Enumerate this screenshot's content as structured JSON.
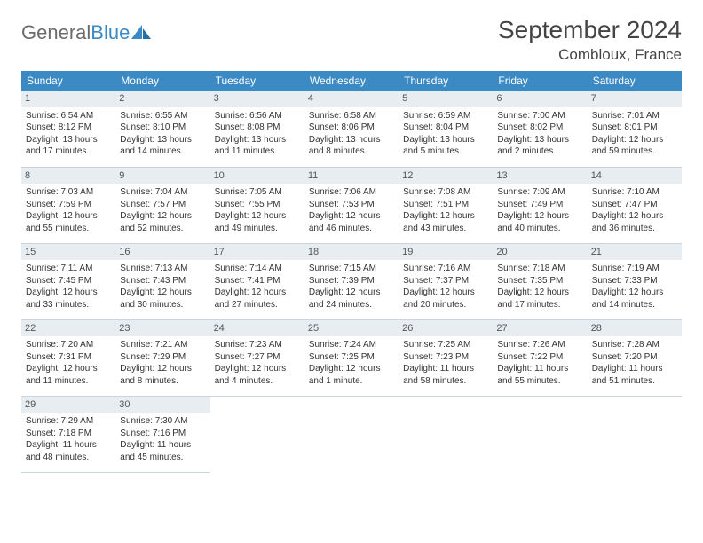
{
  "brand": {
    "word1": "General",
    "word2": "Blue"
  },
  "title": "September 2024",
  "location": "Combloux, France",
  "colors": {
    "header_bg": "#3b8ac4",
    "daynum_bg": "#e8edf2",
    "rule": "#c9d4df"
  },
  "day_headers": [
    "Sunday",
    "Monday",
    "Tuesday",
    "Wednesday",
    "Thursday",
    "Friday",
    "Saturday"
  ],
  "weeks": [
    [
      {
        "n": "1",
        "sr": "Sunrise: 6:54 AM",
        "ss": "Sunset: 8:12 PM",
        "d1": "Daylight: 13 hours",
        "d2": "and 17 minutes."
      },
      {
        "n": "2",
        "sr": "Sunrise: 6:55 AM",
        "ss": "Sunset: 8:10 PM",
        "d1": "Daylight: 13 hours",
        "d2": "and 14 minutes."
      },
      {
        "n": "3",
        "sr": "Sunrise: 6:56 AM",
        "ss": "Sunset: 8:08 PM",
        "d1": "Daylight: 13 hours",
        "d2": "and 11 minutes."
      },
      {
        "n": "4",
        "sr": "Sunrise: 6:58 AM",
        "ss": "Sunset: 8:06 PM",
        "d1": "Daylight: 13 hours",
        "d2": "and 8 minutes."
      },
      {
        "n": "5",
        "sr": "Sunrise: 6:59 AM",
        "ss": "Sunset: 8:04 PM",
        "d1": "Daylight: 13 hours",
        "d2": "and 5 minutes."
      },
      {
        "n": "6",
        "sr": "Sunrise: 7:00 AM",
        "ss": "Sunset: 8:02 PM",
        "d1": "Daylight: 13 hours",
        "d2": "and 2 minutes."
      },
      {
        "n": "7",
        "sr": "Sunrise: 7:01 AM",
        "ss": "Sunset: 8:01 PM",
        "d1": "Daylight: 12 hours",
        "d2": "and 59 minutes."
      }
    ],
    [
      {
        "n": "8",
        "sr": "Sunrise: 7:03 AM",
        "ss": "Sunset: 7:59 PM",
        "d1": "Daylight: 12 hours",
        "d2": "and 55 minutes."
      },
      {
        "n": "9",
        "sr": "Sunrise: 7:04 AM",
        "ss": "Sunset: 7:57 PM",
        "d1": "Daylight: 12 hours",
        "d2": "and 52 minutes."
      },
      {
        "n": "10",
        "sr": "Sunrise: 7:05 AM",
        "ss": "Sunset: 7:55 PM",
        "d1": "Daylight: 12 hours",
        "d2": "and 49 minutes."
      },
      {
        "n": "11",
        "sr": "Sunrise: 7:06 AM",
        "ss": "Sunset: 7:53 PM",
        "d1": "Daylight: 12 hours",
        "d2": "and 46 minutes."
      },
      {
        "n": "12",
        "sr": "Sunrise: 7:08 AM",
        "ss": "Sunset: 7:51 PM",
        "d1": "Daylight: 12 hours",
        "d2": "and 43 minutes."
      },
      {
        "n": "13",
        "sr": "Sunrise: 7:09 AM",
        "ss": "Sunset: 7:49 PM",
        "d1": "Daylight: 12 hours",
        "d2": "and 40 minutes."
      },
      {
        "n": "14",
        "sr": "Sunrise: 7:10 AM",
        "ss": "Sunset: 7:47 PM",
        "d1": "Daylight: 12 hours",
        "d2": "and 36 minutes."
      }
    ],
    [
      {
        "n": "15",
        "sr": "Sunrise: 7:11 AM",
        "ss": "Sunset: 7:45 PM",
        "d1": "Daylight: 12 hours",
        "d2": "and 33 minutes."
      },
      {
        "n": "16",
        "sr": "Sunrise: 7:13 AM",
        "ss": "Sunset: 7:43 PM",
        "d1": "Daylight: 12 hours",
        "d2": "and 30 minutes."
      },
      {
        "n": "17",
        "sr": "Sunrise: 7:14 AM",
        "ss": "Sunset: 7:41 PM",
        "d1": "Daylight: 12 hours",
        "d2": "and 27 minutes."
      },
      {
        "n": "18",
        "sr": "Sunrise: 7:15 AM",
        "ss": "Sunset: 7:39 PM",
        "d1": "Daylight: 12 hours",
        "d2": "and 24 minutes."
      },
      {
        "n": "19",
        "sr": "Sunrise: 7:16 AM",
        "ss": "Sunset: 7:37 PM",
        "d1": "Daylight: 12 hours",
        "d2": "and 20 minutes."
      },
      {
        "n": "20",
        "sr": "Sunrise: 7:18 AM",
        "ss": "Sunset: 7:35 PM",
        "d1": "Daylight: 12 hours",
        "d2": "and 17 minutes."
      },
      {
        "n": "21",
        "sr": "Sunrise: 7:19 AM",
        "ss": "Sunset: 7:33 PM",
        "d1": "Daylight: 12 hours",
        "d2": "and 14 minutes."
      }
    ],
    [
      {
        "n": "22",
        "sr": "Sunrise: 7:20 AM",
        "ss": "Sunset: 7:31 PM",
        "d1": "Daylight: 12 hours",
        "d2": "and 11 minutes."
      },
      {
        "n": "23",
        "sr": "Sunrise: 7:21 AM",
        "ss": "Sunset: 7:29 PM",
        "d1": "Daylight: 12 hours",
        "d2": "and 8 minutes."
      },
      {
        "n": "24",
        "sr": "Sunrise: 7:23 AM",
        "ss": "Sunset: 7:27 PM",
        "d1": "Daylight: 12 hours",
        "d2": "and 4 minutes."
      },
      {
        "n": "25",
        "sr": "Sunrise: 7:24 AM",
        "ss": "Sunset: 7:25 PM",
        "d1": "Daylight: 12 hours",
        "d2": "and 1 minute."
      },
      {
        "n": "26",
        "sr": "Sunrise: 7:25 AM",
        "ss": "Sunset: 7:23 PM",
        "d1": "Daylight: 11 hours",
        "d2": "and 58 minutes."
      },
      {
        "n": "27",
        "sr": "Sunrise: 7:26 AM",
        "ss": "Sunset: 7:22 PM",
        "d1": "Daylight: 11 hours",
        "d2": "and 55 minutes."
      },
      {
        "n": "28",
        "sr": "Sunrise: 7:28 AM",
        "ss": "Sunset: 7:20 PM",
        "d1": "Daylight: 11 hours",
        "d2": "and 51 minutes."
      }
    ],
    [
      {
        "n": "29",
        "sr": "Sunrise: 7:29 AM",
        "ss": "Sunset: 7:18 PM",
        "d1": "Daylight: 11 hours",
        "d2": "and 48 minutes."
      },
      {
        "n": "30",
        "sr": "Sunrise: 7:30 AM",
        "ss": "Sunset: 7:16 PM",
        "d1": "Daylight: 11 hours",
        "d2": "and 45 minutes."
      },
      null,
      null,
      null,
      null,
      null
    ]
  ]
}
